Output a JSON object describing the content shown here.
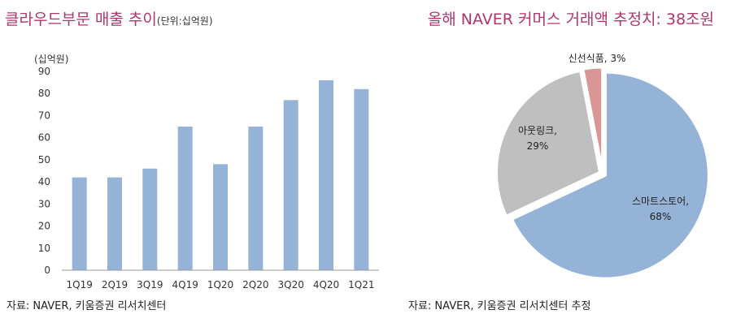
{
  "left_panel": {
    "title": "클라우드부문 매출 추이",
    "unit_note": "(단위:십억원)",
    "source": "자료: NAVER, 키움증권 리서치센터"
  },
  "right_panel": {
    "title": "올해 NAVER 커머스 거래액 추정치: 38조원",
    "source": "자료: NAVER, 키움증권 리서치센터 추정"
  },
  "chart_data": [
    {
      "type": "bar",
      "title": "클라우드부문 매출 추이",
      "ylabel": "(십억원)",
      "categories": [
        "1Q19",
        "2Q19",
        "3Q19",
        "4Q19",
        "1Q20",
        "2Q20",
        "3Q20",
        "4Q20",
        "1Q21"
      ],
      "values": [
        42,
        42,
        46,
        65,
        48,
        65,
        77,
        86,
        82
      ],
      "yticks": [
        0,
        10,
        20,
        30,
        40,
        50,
        60,
        70,
        80,
        90
      ],
      "ylim": [
        0,
        90
      ],
      "color": "#95b3d7",
      "grid": false
    },
    {
      "type": "pie",
      "title": "올해 NAVER 커머스 거래액 추정치: 38조원",
      "slices": [
        {
          "label": "스마트스토어,",
          "pct_text": "68%",
          "value": 68,
          "color": "#95b3d7"
        },
        {
          "label": "아웃링크,",
          "pct_text": "29%",
          "value": 29,
          "color": "#bfbfbf"
        },
        {
          "label": "신선식품, 3%",
          "pct_text": "",
          "value": 3,
          "color": "#d99694"
        }
      ]
    }
  ]
}
